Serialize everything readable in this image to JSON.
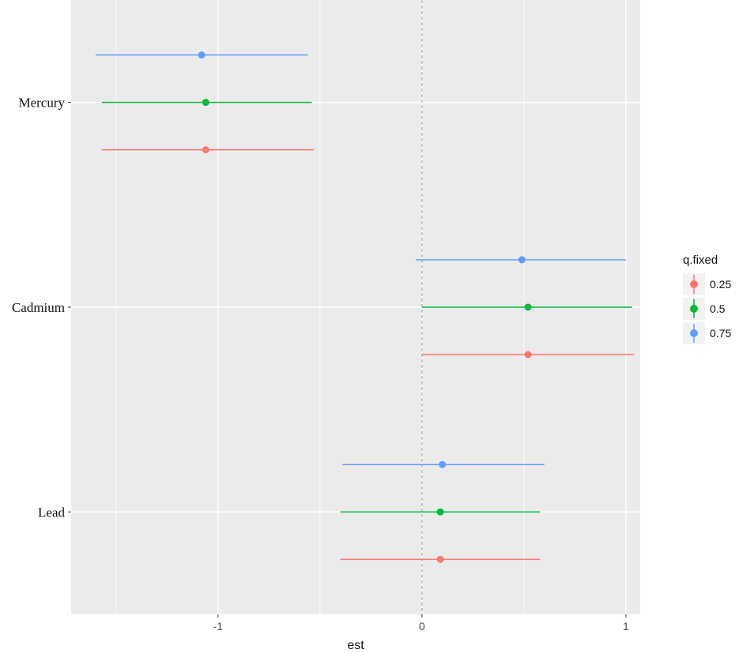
{
  "chart_data": {
    "type": "scatter",
    "subtype": "point-range",
    "title": "",
    "xlabel": "est",
    "ylabel": "",
    "xlim": [
      -1.72,
      1.07
    ],
    "x_ticks": [
      -1,
      0,
      1
    ],
    "x_tick_labels": [
      "-1",
      "0",
      "1"
    ],
    "reference_line": {
      "x": 0,
      "style": "dashed"
    },
    "categories": [
      "Mercury",
      "Cadmium",
      "Lead"
    ],
    "legend": {
      "title": "q.fixed",
      "placement": "right"
    },
    "series": [
      {
        "name": "0.25",
        "color": "#F8766D",
        "points": [
          {
            "category": "Mercury",
            "est": -1.06,
            "low": -1.57,
            "high": -0.53
          },
          {
            "category": "Cadmium",
            "est": 0.52,
            "low": 0.0,
            "high": 1.04
          },
          {
            "category": "Lead",
            "est": 0.09,
            "low": -0.4,
            "high": 0.58
          }
        ]
      },
      {
        "name": "0.5",
        "color": "#00BA38",
        "points": [
          {
            "category": "Mercury",
            "est": -1.06,
            "low": -1.57,
            "high": -0.54
          },
          {
            "category": "Cadmium",
            "est": 0.52,
            "low": 0.0,
            "high": 1.03
          },
          {
            "category": "Lead",
            "est": 0.09,
            "low": -0.4,
            "high": 0.58
          }
        ]
      },
      {
        "name": "0.75",
        "color": "#619CFF",
        "points": [
          {
            "category": "Mercury",
            "est": -1.08,
            "low": -1.6,
            "high": -0.56
          },
          {
            "category": "Cadmium",
            "est": 0.49,
            "low": -0.03,
            "high": 1.0
          },
          {
            "category": "Lead",
            "est": 0.1,
            "low": -0.39,
            "high": 0.6
          }
        ]
      }
    ],
    "grid": true,
    "panel_background": "#EBEBEB",
    "gridline_color": "#FFFFFF"
  }
}
